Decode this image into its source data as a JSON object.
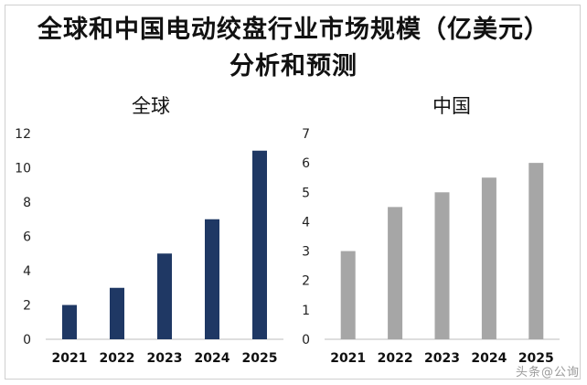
{
  "title": {
    "line1": "全球和中国电动绞盘行业市场规模（亿美元）",
    "line2": "分析和预测"
  },
  "watermark": "头条@公询",
  "chart_data": [
    {
      "type": "bar",
      "title": "全球",
      "categories": [
        "2021",
        "2022",
        "2023",
        "2024",
        "2025"
      ],
      "values": [
        2,
        3,
        5,
        7,
        11
      ],
      "ylim": [
        0,
        12
      ],
      "yticks": [
        0,
        2,
        4,
        6,
        8,
        10,
        12
      ],
      "grid": false,
      "color": "#1f3864"
    },
    {
      "type": "bar",
      "title": "中国",
      "categories": [
        "2021",
        "2022",
        "2023",
        "2024",
        "2025"
      ],
      "values": [
        3,
        4.5,
        5,
        5.5,
        6
      ],
      "ylim": [
        0,
        7
      ],
      "yticks": [
        0,
        1,
        2,
        3,
        4,
        5,
        6,
        7
      ],
      "grid": false,
      "color": "#a6a6a6"
    }
  ]
}
